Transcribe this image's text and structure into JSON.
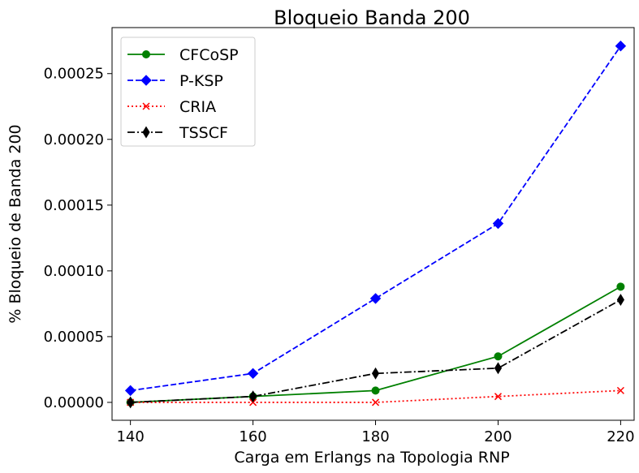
{
  "chart_data": {
    "type": "line",
    "title": "Bloqueio Banda 200",
    "xlabel": "Carga em Erlangs na Topologia RNP",
    "ylabel": "% Bloqueio de Banda 200",
    "x": [
      140,
      160,
      180,
      200,
      220
    ],
    "x_ticks": [
      "140",
      "160",
      "180",
      "200",
      "220"
    ],
    "y_ticks": [
      "0.00000",
      "0.00005",
      "0.00010",
      "0.00015",
      "0.00020",
      "0.00025"
    ],
    "y_tick_values": [
      0,
      5e-05,
      0.0001,
      0.00015,
      0.0002,
      0.00025
    ],
    "xlim": [
      137,
      222.2
    ],
    "ylim": [
      -1.36e-05,
      0.000285
    ],
    "grid": false,
    "legend_position": "top-left",
    "series": [
      {
        "name": "CFCoSP",
        "values": [
          0,
          4.5e-06,
          9e-06,
          3.5e-05,
          8.8e-05
        ],
        "color": "#008000",
        "dash": "solid",
        "marker": "circle"
      },
      {
        "name": "P-KSP",
        "values": [
          9e-06,
          2.2e-05,
          7.9e-05,
          0.000136,
          0.000271
        ],
        "color": "#0000ff",
        "dash": "dashed",
        "marker": "diamond"
      },
      {
        "name": "CRIA",
        "values": [
          0,
          0,
          0,
          4.5e-06,
          9e-06
        ],
        "color": "#ff0000",
        "dash": "dotted",
        "marker": "x"
      },
      {
        "name": "TSSCF",
        "values": [
          0,
          4.5e-06,
          2.2e-05,
          2.6e-05,
          7.8e-05
        ],
        "color": "#000000",
        "dash": "dashdot",
        "marker": "thin-diamond"
      }
    ]
  }
}
